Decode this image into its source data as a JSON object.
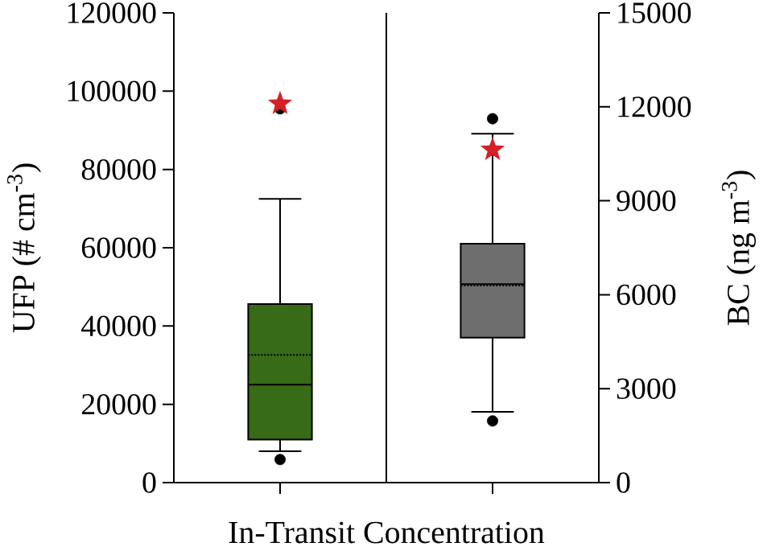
{
  "chart_data": [
    {
      "type": "box",
      "ylabel": "UFP (# cm$^{-3}$)",
      "xlabel": "In-Transit Concentration",
      "categories": [
        null
      ],
      "ylim": [
        0,
        120000
      ],
      "yticks": [
        0,
        20000,
        40000,
        60000,
        80000,
        100000,
        120000
      ],
      "series": [
        {
          "color": "#376b17",
          "boxes": [
            {
              "low": 8000,
              "q1": 11000,
              "median": 25000,
              "q3": 45600,
              "high": 72500,
              "mean": 32600,
              "outliers": [
                5900,
                95500
              ]
            }
          ]
        },
        {
          "type": "scatter",
          "marker": "star",
          "color": "#d42027",
          "values": [
            96800
          ]
        }
      ]
    },
    {
      "type": "box",
      "y2label": "BC (ng m$^{-3}$)",
      "categories": [
        null
      ],
      "y2lim": [
        0,
        15000
      ],
      "y2ticks": [
        0,
        3000,
        6000,
        9000,
        12000,
        15000
      ],
      "series": [
        {
          "axis": "y2",
          "color": "#6e6e6e",
          "boxes": [
            {
              "low": 2260,
              "q1": 4630,
              "median": 6340,
              "q3": 7630,
              "high": 11140,
              "mean": 6290,
              "outliers": [
                1970,
                11620
              ]
            }
          ]
        },
        {
          "type": "scatter",
          "axis": "y2",
          "marker": "star",
          "color": "#d42027",
          "values": [
            10630
          ]
        }
      ]
    }
  ]
}
